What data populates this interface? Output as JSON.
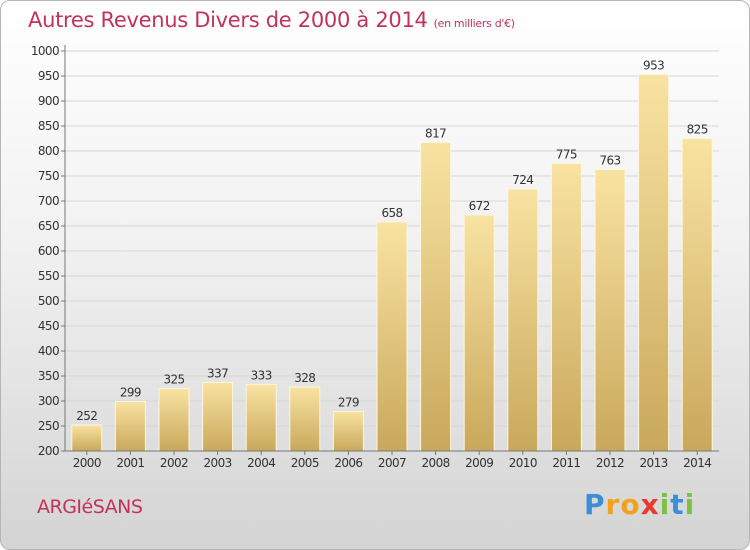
{
  "title": "Autres Revenus Divers de 2000 à 2014",
  "subtitle": "(en milliers d'€)",
  "commune": "ARGIéSANS",
  "logo": {
    "letters": [
      "P",
      "r",
      "o",
      "x",
      "i",
      "t",
      "i"
    ],
    "colors": [
      "#3a8fd6",
      "#f2a21a",
      "#f2a21a",
      "#e8392f",
      "#7cc242",
      "#3a8fd6",
      "#7cc242"
    ]
  },
  "colors": {
    "title": "#c2335b",
    "bar_light": "#f9e3a2",
    "bar_dark": "#c9a85b",
    "grid": "#d6d6d6",
    "axis": "#777777",
    "label": "#333333"
  },
  "chart_data": {
    "type": "bar",
    "title": "Autres Revenus Divers de 2000 à 2014",
    "xlabel": "",
    "ylabel": "",
    "categories": [
      "2000",
      "2001",
      "2002",
      "2003",
      "2004",
      "2005",
      "2006",
      "2007",
      "2008",
      "2009",
      "2010",
      "2011",
      "2012",
      "2013",
      "2014"
    ],
    "values": [
      252,
      299,
      325,
      337,
      333,
      328,
      279,
      658,
      817,
      672,
      724,
      775,
      763,
      953,
      825
    ],
    "ylim": [
      200,
      1000
    ],
    "yticks": [
      200,
      250,
      300,
      350,
      400,
      450,
      500,
      550,
      600,
      650,
      700,
      750,
      800,
      850,
      900,
      950,
      1000
    ],
    "grid": true,
    "legend": "none"
  }
}
